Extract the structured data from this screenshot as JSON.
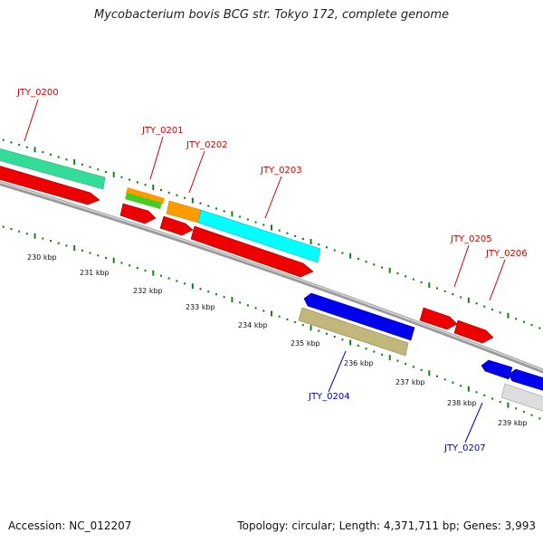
{
  "title": "Mycobacterium bovis BCG str. Tokyo 172, complete genome",
  "footer": {
    "accession": "Accession: NC_012207",
    "topology": "Topology: circular; Length: 4,371,711 bp; Genes: 3,993"
  },
  "colors": {
    "forward_label": "#cc0000",
    "reverse_label": "#0000aa",
    "tick": "#1a7f1a",
    "backbone": "#888888"
  },
  "kbp_labels": [
    "230 kbp",
    "231 kbp",
    "232 kbp",
    "233 kbp",
    "234 kbp",
    "235 kbp",
    "236 kbp",
    "237 kbp",
    "238 kbp",
    "239 kbp"
  ],
  "gene_labels": [
    {
      "text": "JTY_0200",
      "strand": "forward"
    },
    {
      "text": "JTY_0201",
      "strand": "forward"
    },
    {
      "text": "JTY_0202",
      "strand": "forward"
    },
    {
      "text": "JTY_0203",
      "strand": "forward"
    },
    {
      "text": "JTY_0205",
      "strand": "forward"
    },
    {
      "text": "JTY_0206",
      "strand": "forward"
    },
    {
      "text": "JTY_0204",
      "strand": "reverse"
    },
    {
      "text": "JTY_0207",
      "strand": "reverse"
    }
  ]
}
